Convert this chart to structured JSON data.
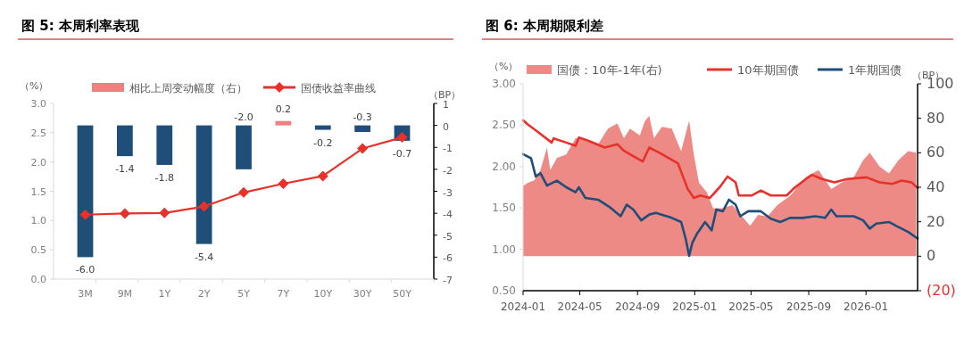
{
  "chart_data": [
    {
      "type": "bar",
      "title": "图 5: 本周利率表现",
      "ylabel": "（%）",
      "y2label": "（BP）",
      "legend": "top",
      "marker": "diamond",
      "categories": [
        "3M",
        "9M",
        "1Y",
        "2Y",
        "5Y",
        "7Y",
        "10Y",
        "30Y",
        "50Y"
      ],
      "series": [
        {
          "name": "相比上周变动幅度（右）",
          "type": "bar",
          "axis": "y2",
          "color": "#f08080",
          "colors": [
            "#1f4e79",
            "#1f4e79",
            "#1f4e79",
            "#1f4e79",
            "#1f4e79",
            "#f08080",
            "#1f4e79",
            "#1f4e79",
            "#1f4e79"
          ],
          "values": [
            -6.0,
            -1.4,
            -1.8,
            -5.4,
            -2.0,
            0.2,
            -0.2,
            -0.3,
            -0.7
          ],
          "value_labels": [
            "-6.0",
            "-1.4",
            "-1.8",
            "-5.4",
            "-2.0",
            "0.2",
            "-0.2",
            "-0.3",
            "-0.7"
          ]
        },
        {
          "name": "国债收益率曲线",
          "type": "line",
          "color": "#e8312a",
          "values": [
            1.1,
            1.12,
            1.13,
            1.24,
            1.48,
            1.63,
            1.76,
            2.23,
            2.42
          ]
        }
      ],
      "ylim": [
        0,
        3
      ],
      "yticks": [
        {
          "value": 0,
          "label": "0.0"
        },
        0.5,
        {
          "value": 1,
          "label": "1.0"
        },
        1.5,
        {
          "value": 2,
          "label": "2.0"
        },
        2.5,
        {
          "value": 3,
          "label": "3.0"
        }
      ],
      "y2lim": [
        -7,
        1
      ],
      "y2ticks": [
        -7,
        -6,
        -5,
        -4,
        -3,
        -2,
        -1,
        0,
        1
      ]
    },
    {
      "type": "line",
      "title": "图 6: 本周期限利差",
      "ylabel": "（%）",
      "y2label": "（BP）",
      "legend": "top",
      "marker": "none",
      "series": [
        {
          "name": "国债：10年-1年(右)",
          "type": "area",
          "axis": "y2",
          "color": "#ee8a85",
          "x": [
            "2024-01-01",
            "2024-01-11",
            "2024-01-25",
            "2024-02-07",
            "2024-02-21",
            "2024-02-28",
            "2024-03-13",
            "2024-04-02",
            "2024-04-22",
            "2024-05-20",
            "2024-06-09",
            "2024-06-30",
            "2024-07-20",
            "2024-08-03",
            "2024-08-16",
            "2024-09-06",
            "2024-09-16",
            "2024-09-26",
            "2024-10-06",
            "2024-10-23",
            "2024-11-13",
            "2024-12-03",
            "2024-12-20",
            "2024-12-30",
            "2025-01-10",
            "2025-01-27",
            "2025-02-09",
            "2025-03-02",
            "2025-03-22",
            "2025-04-12",
            "2025-04-29",
            "2025-05-16",
            "2025-06-05",
            "2025-06-26",
            "2025-07-23",
            "2025-08-26",
            "2025-09-22",
            "2025-10-19",
            "2025-11-09",
            "2025-12-06",
            "2025-12-26",
            "2026-01-09",
            "2026-01-30",
            "2026-02-19",
            "2026-03-11",
            "2026-04-01",
            "2026-04-18"
          ],
          "values": [
            40.7,
            42.6,
            44,
            50,
            63,
            50,
            57,
            59,
            68.5,
            67,
            65,
            74,
            77,
            68.5,
            74,
            70,
            78,
            81.5,
            68.5,
            75,
            74,
            61,
            78.7,
            59,
            42.6,
            37,
            27.8,
            27.8,
            29.6,
            23,
            17.6,
            24,
            23,
            29.6,
            35,
            46,
            50,
            39,
            42.6,
            46,
            55.6,
            60,
            52,
            48,
            55.6,
            61,
            60
          ]
        },
        {
          "name": "10年期国债",
          "type": "line",
          "color": "#e8312a",
          "x": [
            "2024-01-01",
            "2024-01-11",
            "2024-02-01",
            "2024-03-02",
            "2024-03-06",
            "2024-04-02",
            "2024-04-22",
            "2024-04-29",
            "2024-05-20",
            "2024-06-23",
            "2024-07-20",
            "2024-08-03",
            "2024-09-12",
            "2024-09-26",
            "2024-10-23",
            "2024-11-26",
            "2024-12-17",
            "2024-12-30",
            "2025-01-13",
            "2025-02-02",
            "2025-02-23",
            "2025-03-12",
            "2025-03-29",
            "2025-04-05",
            "2025-05-02",
            "2025-05-22",
            "2025-06-12",
            "2025-07-16",
            "2025-07-30",
            "2025-08-26",
            "2025-09-08",
            "2025-09-29",
            "2025-10-26",
            "2025-11-22",
            "2026-01-02",
            "2026-01-30",
            "2026-02-26",
            "2026-03-18",
            "2026-04-08",
            "2026-04-21"
          ],
          "values": [
            2.56,
            2.51,
            2.42,
            2.29,
            2.34,
            2.29,
            2.25,
            2.35,
            2.31,
            2.23,
            2.27,
            2.19,
            2.06,
            2.23,
            2.15,
            2.04,
            1.73,
            1.62,
            1.65,
            1.62,
            1.75,
            1.88,
            1.81,
            1.65,
            1.65,
            1.71,
            1.65,
            1.65,
            1.73,
            1.85,
            1.9,
            1.85,
            1.81,
            1.85,
            1.87,
            1.81,
            1.79,
            1.83,
            1.81,
            1.74
          ]
        },
        {
          "name": "1年期国债",
          "type": "line",
          "color": "#1f4e79",
          "x": [
            "2024-01-01",
            "2024-01-18",
            "2024-01-28",
            "2024-02-07",
            "2024-02-21",
            "2024-03-13",
            "2024-04-02",
            "2024-04-22",
            "2024-04-29",
            "2024-05-13",
            "2024-06-09",
            "2024-07-06",
            "2024-07-27",
            "2024-08-09",
            "2024-08-23",
            "2024-09-09",
            "2024-09-26",
            "2024-10-10",
            "2024-11-13",
            "2024-12-03",
            "2024-12-13",
            "2024-12-20",
            "2024-12-27",
            "2025-01-06",
            "2025-01-23",
            "2025-02-06",
            "2025-02-16",
            "2025-03-02",
            "2025-03-15",
            "2025-03-29",
            "2025-04-08",
            "2025-04-25",
            "2025-05-22",
            "2025-06-12",
            "2025-07-02",
            "2025-07-23",
            "2025-08-19",
            "2025-09-15",
            "2025-10-06",
            "2025-10-19",
            "2025-10-30",
            "2025-12-06",
            "2025-12-26",
            "2026-01-09",
            "2026-01-23",
            "2026-02-19",
            "2026-03-11",
            "2026-04-01",
            "2026-04-21"
          ],
          "values": [
            2.15,
            2.1,
            1.88,
            1.92,
            1.77,
            1.83,
            1.75,
            1.69,
            1.75,
            1.62,
            1.6,
            1.5,
            1.4,
            1.54,
            1.48,
            1.35,
            1.42,
            1.44,
            1.38,
            1.33,
            1.12,
            0.92,
            1.08,
            1.19,
            1.33,
            1.23,
            1.48,
            1.46,
            1.6,
            1.54,
            1.4,
            1.46,
            1.46,
            1.37,
            1.33,
            1.38,
            1.38,
            1.4,
            1.38,
            1.48,
            1.4,
            1.4,
            1.35,
            1.25,
            1.31,
            1.33,
            1.27,
            1.21,
            1.13
          ]
        }
      ],
      "xlim": [
        "2024-01-01",
        "2026-04-21"
      ],
      "xticks": [
        "2024-01",
        "2024-05",
        "2024-09",
        "2025-01",
        "2025-05",
        "2025-09",
        "2026-01"
      ],
      "ylim": [
        0.5,
        3
      ],
      "yticks": [
        {
          "value": 0.5,
          "label": "0.50"
        },
        {
          "value": 1,
          "label": "1.00"
        },
        {
          "value": 1.5,
          "label": "1.50"
        },
        {
          "value": 2,
          "label": "2.00"
        },
        {
          "value": 2.5,
          "label": "2.50"
        },
        {
          "value": 3,
          "label": "3.00"
        }
      ],
      "y2lim": [
        -20,
        100
      ],
      "y2ticks": [
        {
          "value": -20,
          "label": "(20)"
        },
        0,
        20,
        40,
        60,
        80,
        100
      ]
    }
  ]
}
